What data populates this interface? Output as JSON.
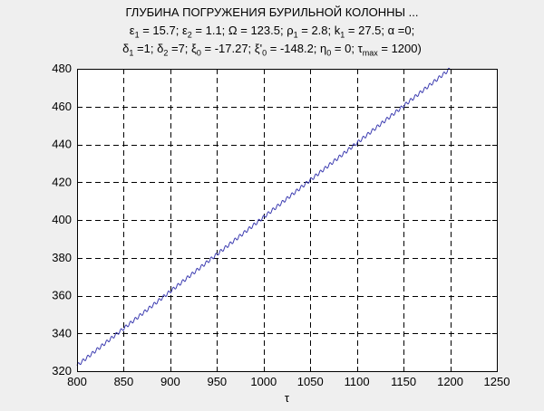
{
  "chart_data": {
    "type": "line",
    "title": [
      "ГЛУБИНА ПОГРУЖЕНИЯ БУРИЛЬНОЙ КОЛОННЫ ...",
      "ε1 = 15.7;ε2 = 1.1; Ω = 123.5; ρ1 = 2.8; k1 = 27.5;α =0;",
      "δ1 =1; δ2 =7; ξ0 = -17.27; ξ'0 = -148.2; η0 = 0; τmax = 1200)"
    ],
    "xlabel": "τ",
    "ylabel": "",
    "xlim": [
      800,
      1250
    ],
    "ylim": [
      320,
      480
    ],
    "xticks": [
      800,
      850,
      900,
      950,
      1000,
      1050,
      1100,
      1150,
      1200,
      1250
    ],
    "yticks": [
      320,
      340,
      360,
      380,
      400,
      420,
      440,
      460,
      480
    ],
    "grid": true,
    "line_color": "#3b3bb0",
    "series": [
      {
        "x": [
          800,
          1200
        ],
        "y": [
          323,
          480
        ],
        "ripple_amplitude": 0.9,
        "ripple_period": 5.09
      }
    ]
  }
}
